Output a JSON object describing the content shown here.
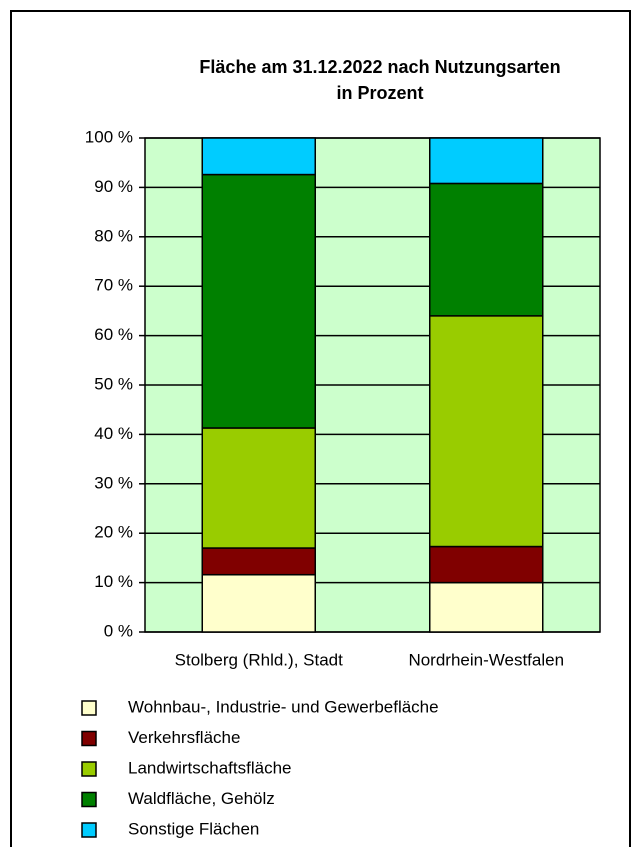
{
  "chart_data": {
    "type": "bar",
    "stacked": true,
    "title": "Fläche am 31.12.2022 nach Nutzungsarten",
    "subtitle": "in Prozent",
    "categories": [
      "Stolberg (Rhld.), Stadt",
      "Nordrhein-Westfalen"
    ],
    "series": [
      {
        "name": "Wohnbau-, Industrie- und Gewerbefläche",
        "color": "#ffffcc",
        "values": [
          11.6,
          10.0
        ]
      },
      {
        "name": "Verkehrsfläche",
        "color": "#800000",
        "values": [
          5.4,
          7.3
        ]
      },
      {
        "name": "Landwirtschaftsfläche",
        "color": "#99cc00",
        "values": [
          24.3,
          46.7
        ]
      },
      {
        "name": "Waldfläche, Gehölz",
        "color": "#008000",
        "values": [
          51.3,
          26.8
        ]
      },
      {
        "name": "Sonstige Flächen",
        "color": "#00ccff",
        "values": [
          7.4,
          9.2
        ]
      }
    ],
    "ylim": [
      0,
      100
    ],
    "yticks": [
      {
        "value": 0,
        "label": "0 %"
      },
      {
        "value": 10,
        "label": "10 %"
      },
      {
        "value": 20,
        "label": "20 %"
      },
      {
        "value": 30,
        "label": "30 %"
      },
      {
        "value": 40,
        "label": "40 %"
      },
      {
        "value": 50,
        "label": "50 %"
      },
      {
        "value": 60,
        "label": "60 %"
      },
      {
        "value": 70,
        "label": "70 %"
      },
      {
        "value": 80,
        "label": "80 %"
      },
      {
        "value": 90,
        "label": "90 %"
      },
      {
        "value": 100,
        "label": "100 %"
      }
    ],
    "grid": true,
    "plot_background": "#ccffcc",
    "legend": "bottom"
  }
}
